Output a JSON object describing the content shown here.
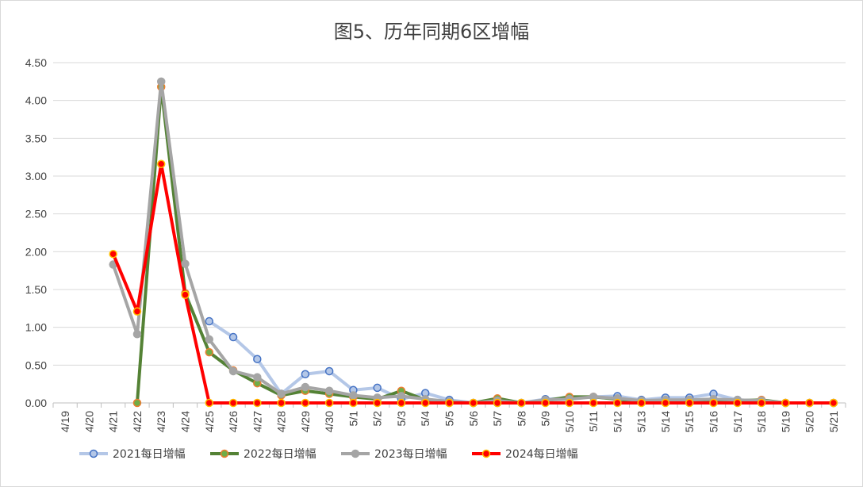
{
  "chart_data": {
    "type": "line",
    "title": "图5、历年同期6区增幅",
    "xlabel": "",
    "ylabel": "",
    "ylim": [
      0,
      4.5
    ],
    "yticks": [
      "0.00",
      "0.50",
      "1.00",
      "1.50",
      "2.00",
      "2.50",
      "3.00",
      "3.50",
      "4.00",
      "4.50"
    ],
    "grid": true,
    "legend_position": "bottom",
    "categories": [
      "4/19",
      "4/20",
      "4/21",
      "4/22",
      "4/23",
      "4/24",
      "4/25",
      "4/26",
      "4/27",
      "4/28",
      "4/29",
      "4/30",
      "5/1",
      "5/2",
      "5/3",
      "5/4",
      "5/5",
      "5/6",
      "5/7",
      "5/8",
      "5/9",
      "5/10",
      "5/11",
      "5/12",
      "5/13",
      "5/14",
      "5/15",
      "5/16",
      "5/17",
      "5/18",
      "5/19",
      "5/20",
      "5/21"
    ],
    "series": [
      {
        "name": "2021每日增幅",
        "line_color": "#b4c7e7",
        "marker_fill": "#b4c7e7",
        "marker_stroke": "#4472c4",
        "values": [
          null,
          null,
          null,
          null,
          null,
          null,
          1.08,
          0.87,
          0.58,
          0.12,
          0.38,
          0.42,
          0.17,
          0.2,
          0.05,
          0.13,
          0.04,
          0.0,
          0.0,
          0.0,
          0.05,
          0.06,
          0.08,
          0.09,
          0.04,
          0.07,
          0.07,
          0.12,
          0.04,
          0.03,
          0.0,
          0.0,
          0.0
        ]
      },
      {
        "name": "2022每日增幅",
        "line_color": "#548235",
        "marker_fill": "#70ad47",
        "marker_stroke": "#ed7d31",
        "values": [
          null,
          null,
          null,
          0.0,
          4.18,
          1.45,
          0.67,
          0.43,
          0.26,
          0.1,
          0.16,
          0.12,
          0.08,
          0.05,
          0.16,
          0.04,
          0.0,
          0.0,
          0.06,
          0.0,
          0.03,
          0.08,
          0.08,
          0.05,
          0.02,
          0.03,
          0.04,
          0.03,
          0.03,
          0.04,
          0.0,
          0.0,
          0.0
        ]
      },
      {
        "name": "2023每日增幅",
        "line_color": "#a5a5a5",
        "marker_fill": "#a5a5a5",
        "marker_stroke": "#a5a5a5",
        "values": [
          null,
          null,
          1.83,
          0.91,
          4.25,
          1.84,
          0.84,
          0.42,
          0.34,
          0.12,
          0.21,
          0.16,
          0.1,
          0.07,
          0.09,
          0.05,
          0.02,
          0.0,
          0.03,
          0.0,
          0.04,
          0.05,
          0.08,
          0.06,
          0.03,
          0.04,
          0.04,
          0.05,
          0.04,
          0.03,
          0.0,
          0.0,
          0.0
        ]
      },
      {
        "name": "2024每日增幅",
        "line_color": "#ff0000",
        "marker_fill": "#ff0000",
        "marker_stroke": "#ffc000",
        "values": [
          null,
          null,
          1.97,
          1.21,
          3.16,
          1.43,
          0.0,
          0.0,
          0.0,
          0.0,
          0.0,
          0.0,
          0.0,
          0.0,
          0.0,
          0.0,
          0.0,
          0.0,
          0.0,
          0.0,
          0.0,
          0.0,
          0.0,
          0.0,
          0.0,
          0.0,
          0.0,
          0.0,
          0.0,
          0.0,
          0.0,
          0.0,
          0.0
        ]
      }
    ]
  }
}
